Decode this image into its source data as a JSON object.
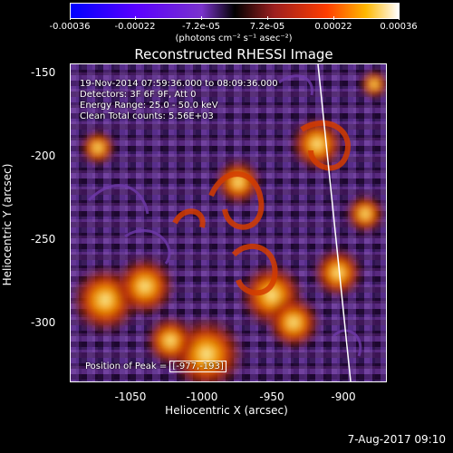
{
  "colorbar": {
    "labels": [
      "-0.00036",
      "-0.00022",
      "-7.2e-05",
      "7.2e-05",
      "0.00022",
      "0.00036"
    ],
    "units": "(photons cm⁻² s⁻¹ asec⁻²)",
    "colors": [
      "#0000ff",
      "#5a00ff",
      "#7a33cc",
      "#000000",
      "#9c1f1f",
      "#ff3d00",
      "#ffb800",
      "#ffffff"
    ]
  },
  "title": "Reconstructed RHESSI Image",
  "axes": {
    "x_label": "Heliocentric X (arcsec)",
    "y_label": "Heliocentric Y (arcsec)",
    "x_ticks": [
      "-1050",
      "-1000",
      "-950",
      "-900"
    ],
    "y_ticks": [
      "-150",
      "-200",
      "-250",
      "-300"
    ]
  },
  "overlay": {
    "line1": "19-Nov-2014 07:59:36.000 to 08:09:36.000",
    "line2": "Detectors: 3F 6F 9F, Att 0",
    "line3": "Energy Range: 25.0 - 50.0 keV",
    "line4": "Clean    Total counts: 5.56E+03",
    "peak_label": "Position of Peak = ",
    "peak_value": "[-977,-193]"
  },
  "footer": {
    "timestamp": "7-Aug-2017 09:10"
  }
}
